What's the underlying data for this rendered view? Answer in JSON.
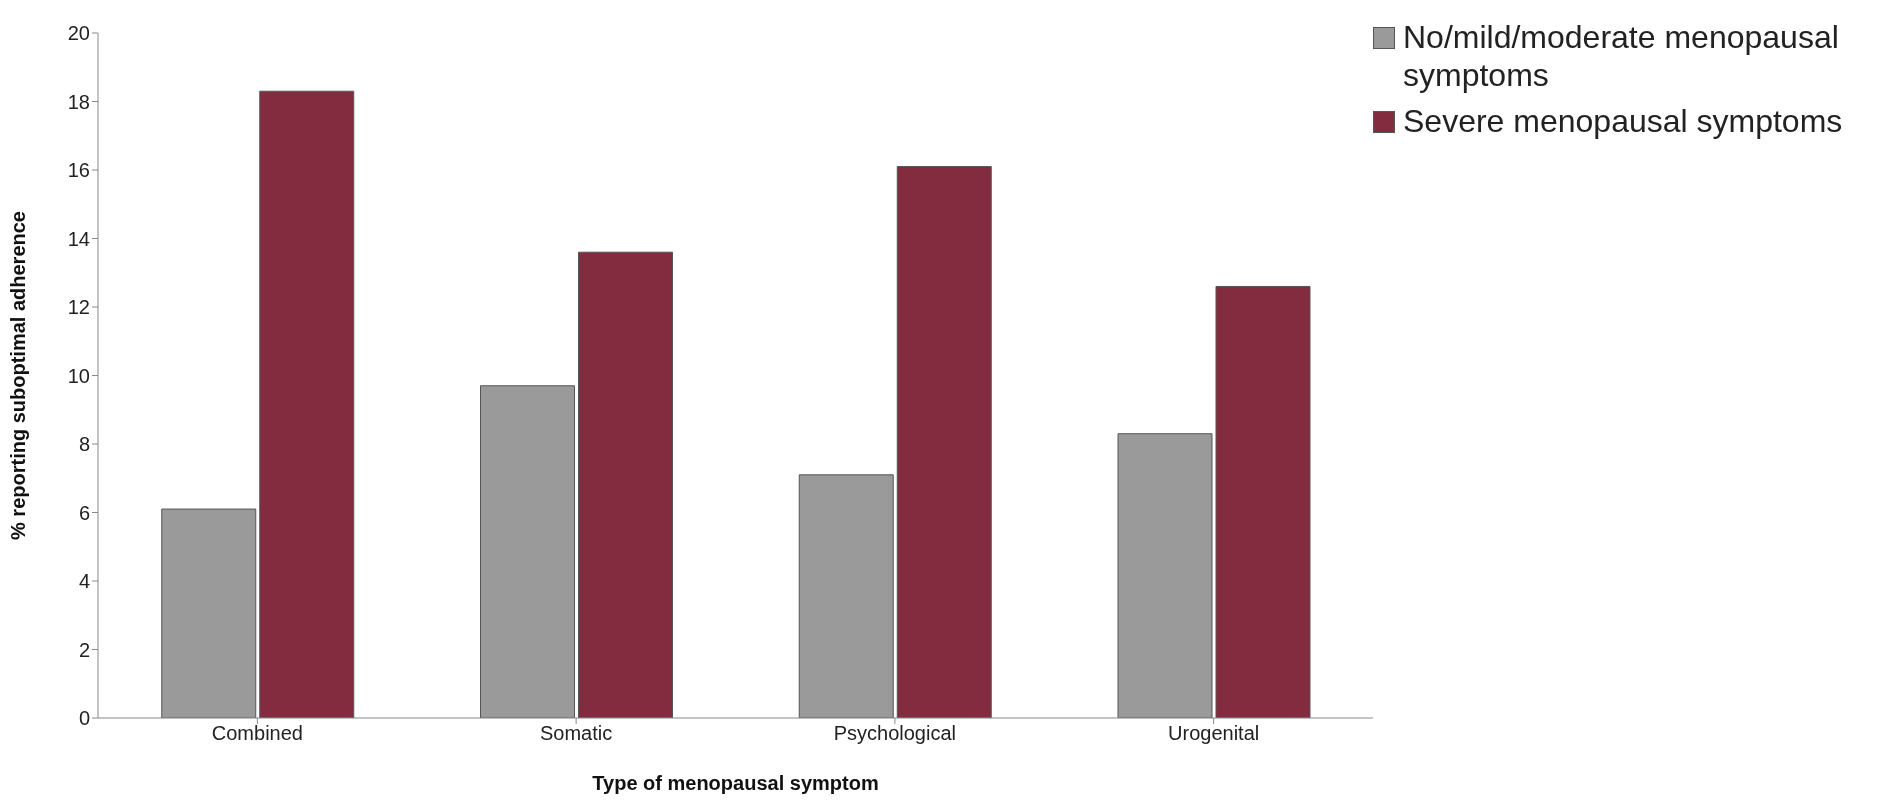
{
  "chart_data": {
    "type": "bar",
    "xlabel": "Type of menopausal symptom",
    "ylabel": "% reporting suboptimal adherence",
    "categories": [
      "Combined",
      "Somatic",
      "Psychological",
      "Urogenital"
    ],
    "series": [
      {
        "name": "No/mild/moderate menopausal symptoms",
        "color": "#9a9a9a",
        "values": [
          6.1,
          9.7,
          7.1,
          8.3
        ]
      },
      {
        "name": "Severe menopausal symptoms",
        "color": "#832c40",
        "values": [
          18.3,
          13.6,
          16.1,
          12.6
        ]
      }
    ],
    "ylim": [
      0,
      20
    ],
    "yticks": [
      0,
      2,
      4,
      6,
      8,
      10,
      12,
      14,
      16,
      18,
      20
    ],
    "grid": false,
    "legend": "top right"
  }
}
